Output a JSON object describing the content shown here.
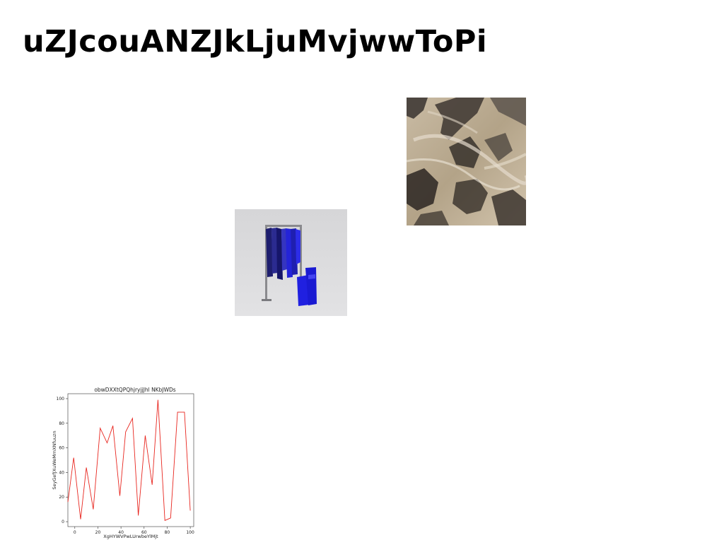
{
  "page": {
    "title": "uZJcouANZJkLjuMvjwwToPi"
  },
  "images": [
    {
      "name": "mountain-photo",
      "description_color": "#b9a990"
    },
    {
      "name": "rack-photo",
      "description_color": "#2a2ae6"
    }
  ],
  "chart_data": {
    "type": "line",
    "title": "obwDXXtQPQhjryjjJhl NKbJWDs",
    "xlabel": "XgHYWVPwLUrwbeYlMjt",
    "ylabel": "SeyGefJXuWeMmXNfuuzn",
    "xlim": [
      -6,
      103
    ],
    "ylim": [
      -4,
      104
    ],
    "xticks": [
      0,
      20,
      40,
      60,
      80,
      100
    ],
    "yticks": [
      0,
      20,
      40,
      60,
      80,
      100
    ],
    "grid": false,
    "series": [
      {
        "color": "#e8261f",
        "x": [
          -6,
          -1,
          5,
          10,
          16,
          22,
          28,
          33,
          39,
          44,
          50,
          55,
          61,
          67,
          72,
          78,
          83,
          89,
          95,
          100
        ],
        "y": [
          16,
          52,
          2,
          44,
          10,
          76,
          64,
          78,
          21,
          73,
          84,
          5,
          70,
          30,
          99,
          1,
          3,
          89,
          89,
          9
        ]
      }
    ]
  }
}
